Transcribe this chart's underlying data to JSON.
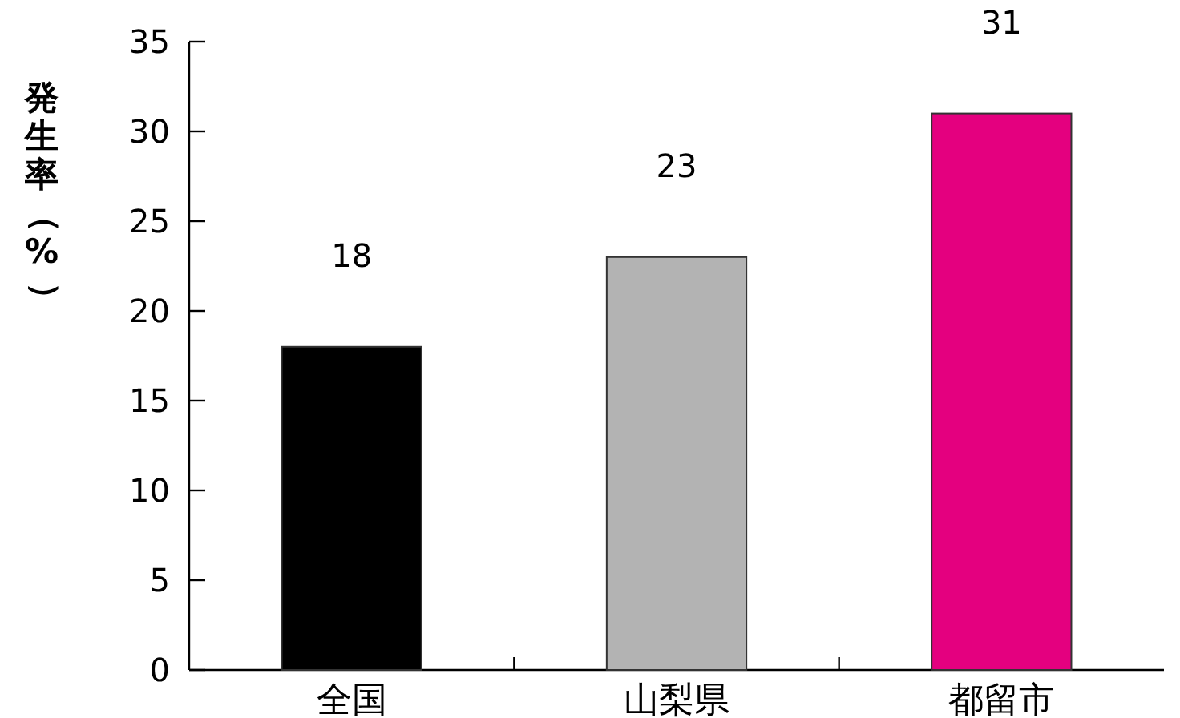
{
  "chart_data": {
    "type": "bar",
    "ylabel": "発生率（%）",
    "categories": [
      "全国",
      "山梨県",
      "都留市"
    ],
    "values": [
      18,
      23,
      31
    ],
    "colors": [
      "#000000",
      "#b3b3b3",
      "#e4007f"
    ],
    "ylim": [
      0,
      35
    ],
    "yticks": [
      0,
      5,
      10,
      15,
      20,
      25,
      30,
      35
    ],
    "data_labels": true
  }
}
